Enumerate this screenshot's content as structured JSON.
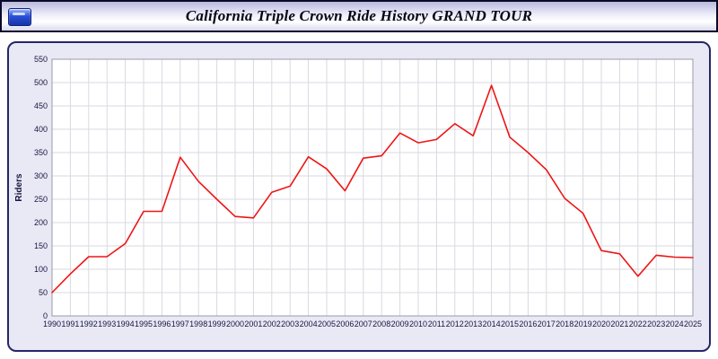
{
  "header": {
    "icon": "chart-icon"
  },
  "chart_data": {
    "type": "line",
    "title": "California Triple Crown Ride History GRAND TOUR",
    "xlabel": "",
    "ylabel": "Riders",
    "x": [
      1990,
      1991,
      1992,
      1993,
      1994,
      1995,
      1996,
      1997,
      1998,
      1999,
      2000,
      2001,
      2002,
      2003,
      2004,
      2005,
      2006,
      2007,
      2008,
      2009,
      2010,
      2011,
      2012,
      2013,
      2014,
      2015,
      2016,
      2017,
      2018,
      2019,
      2020,
      2021,
      2022,
      2023,
      2024,
      2025
    ],
    "series": [
      {
        "name": "Riders",
        "color": "#ee1515",
        "values": [
          50,
          90,
          127,
          127,
          155,
          224,
          224,
          340,
          288,
          250,
          213,
          210,
          265,
          278,
          341,
          315,
          268,
          338,
          343,
          392,
          371,
          378,
          412,
          386,
          494,
          383,
          350,
          313,
          252,
          220,
          140,
          133,
          85,
          130,
          126,
          125
        ]
      }
    ],
    "ylim": [
      0,
      550
    ],
    "ytick_step": 50,
    "grid": true,
    "legend": "none",
    "colors": {
      "grid": "#d9d9e2",
      "plot_border": "#9a9aa8",
      "plot_background": "#ffffff",
      "tick_text": "#16163f"
    }
  }
}
